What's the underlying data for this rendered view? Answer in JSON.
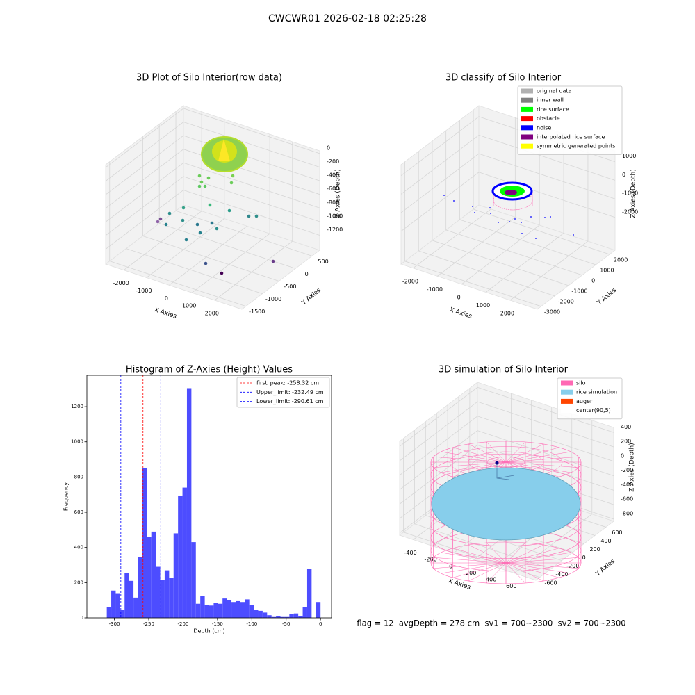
{
  "title": "CWCWR01 2026-02-18 02:25:28",
  "chart_data": [
    {
      "type": "scatter3d",
      "title": "3D Plot of Silo Interior(row data)",
      "xlabel": "X Axies",
      "ylabel": "Y Axies",
      "zlabel": "Z Axies (Depth)",
      "xlim": [
        -2800,
        3200
      ],
      "xticks": [
        -2000,
        -1000,
        0,
        1000,
        2000
      ],
      "ylim": [
        -1620,
        730
      ],
      "yticks": [
        -1500,
        -1000,
        -500,
        0,
        500
      ],
      "zlim": [
        -1420,
        40
      ],
      "zticks": [
        -1200,
        -1000,
        -800,
        -600,
        -400,
        -200,
        0
      ]
    },
    {
      "type": "scatter3d",
      "title": "3D classify of Silo Interior",
      "xlabel": "X Axies",
      "ylabel": "Y Axies",
      "zlabel": "Z Axies (Depth)",
      "xlim": [
        -2500,
        3120
      ],
      "xticks": [
        -2000,
        -1000,
        0,
        1000,
        2000
      ],
      "ylim": [
        -3280,
        2400
      ],
      "yticks": [
        -3000,
        -2000,
        -1000,
        0,
        1000,
        2000
      ],
      "zlim": [
        -3770,
        1590
      ],
      "zticks": [
        -2000,
        -1000,
        0,
        1000
      ],
      "legend": [
        {
          "name": "original data",
          "color": "#b0b0b0"
        },
        {
          "name": "inner wall",
          "color": "#808080"
        },
        {
          "name": "rice surface",
          "color": "#00ff00"
        },
        {
          "name": "obstacle",
          "color": "#ff0000"
        },
        {
          "name": "noise",
          "color": "#0000ff"
        },
        {
          "name": "interpolated rice surface",
          "color": "#800080"
        },
        {
          "name": "symmetric generated points",
          "color": "#ffff00"
        }
      ]
    },
    {
      "type": "histogram",
      "title": "Histogram of Z-Axies (Height) Values",
      "xlabel": "Depth (cm)",
      "ylabel": "Frequency",
      "color": "#4d4dff",
      "bins": [
        -311.04,
        -304.56,
        -298.08,
        -291.6,
        -285.12,
        -278.64,
        -272.16,
        -265.68,
        -259.2,
        -252.72,
        -246.24,
        -239.76,
        -233.28,
        -226.8,
        -220.32,
        -213.84,
        -207.36,
        -200.88,
        -194.4,
        -187.92,
        -181.44,
        -174.96,
        -168.48,
        -162,
        -155.52,
        -149.04,
        -142.56,
        -136.08,
        -129.6,
        -123.12,
        -116.64,
        -110.16,
        -103.68,
        -97.2,
        -90.72,
        -84.24,
        -77.76,
        -71.28,
        -64.8,
        -58.32,
        -51.84,
        -45.36,
        -38.88,
        -32.4,
        -25.92,
        -19.44,
        -12.96,
        -6.48,
        0
      ],
      "values": [
        60,
        155,
        140,
        45,
        255,
        210,
        115,
        345,
        850,
        460,
        490,
        290,
        215,
        270,
        225,
        480,
        695,
        740,
        1305,
        430,
        80,
        125,
        75,
        70,
        85,
        80,
        110,
        100,
        90,
        95,
        90,
        105,
        75,
        45,
        40,
        30,
        15,
        5,
        10,
        5,
        5,
        20,
        25,
        10,
        60,
        280,
        0,
        90
      ],
      "xlim": [
        -340,
        16
      ],
      "xticks": [
        -300,
        -250,
        -200,
        -150,
        -100,
        -50,
        0
      ],
      "ylim": [
        0,
        1378
      ],
      "yticks": [
        0,
        200,
        400,
        600,
        800,
        1000,
        1200
      ],
      "lines": [
        {
          "name": "first_peak: -258.32 cm",
          "value": -258.32,
          "color": "#ff0000"
        },
        {
          "name": "Upper_limit: -232.49 cm",
          "value": -232.49,
          "color": "#0000ff"
        },
        {
          "name": "Lower_limit: -290.61 cm",
          "value": -290.61,
          "color": "#0000ff"
        }
      ]
    },
    {
      "type": "surface3d",
      "title": "3D simulation of Silo Interior",
      "xlabel": "X Axies",
      "ylabel": "Y Axies",
      "zlabel": "Z Axies (Depth)",
      "xlim": [
        -535,
        815
      ],
      "xticks": [
        -400,
        -200,
        0,
        200,
        400,
        600
      ],
      "ylim": [
        -670,
        740
      ],
      "yticks": [
        -600,
        -400,
        -200,
        0,
        200,
        400,
        600
      ],
      "zlim": [
        -830,
        470
      ],
      "zticks": [
        -800,
        -600,
        -400,
        -200,
        0,
        200,
        400
      ],
      "legend": [
        {
          "name": "silo",
          "color": "#ff69b4"
        },
        {
          "name": "rice simulation",
          "color": "#87ceeb"
        },
        {
          "name": "auger",
          "color": "#ff4500"
        },
        {
          "name": "center(90,5)",
          "color": "#ffffff"
        }
      ]
    }
  ],
  "annotation": "flag = 12  avgDepth = 278 cm  sv1 = 700~2300  sv2 = 700~2300"
}
